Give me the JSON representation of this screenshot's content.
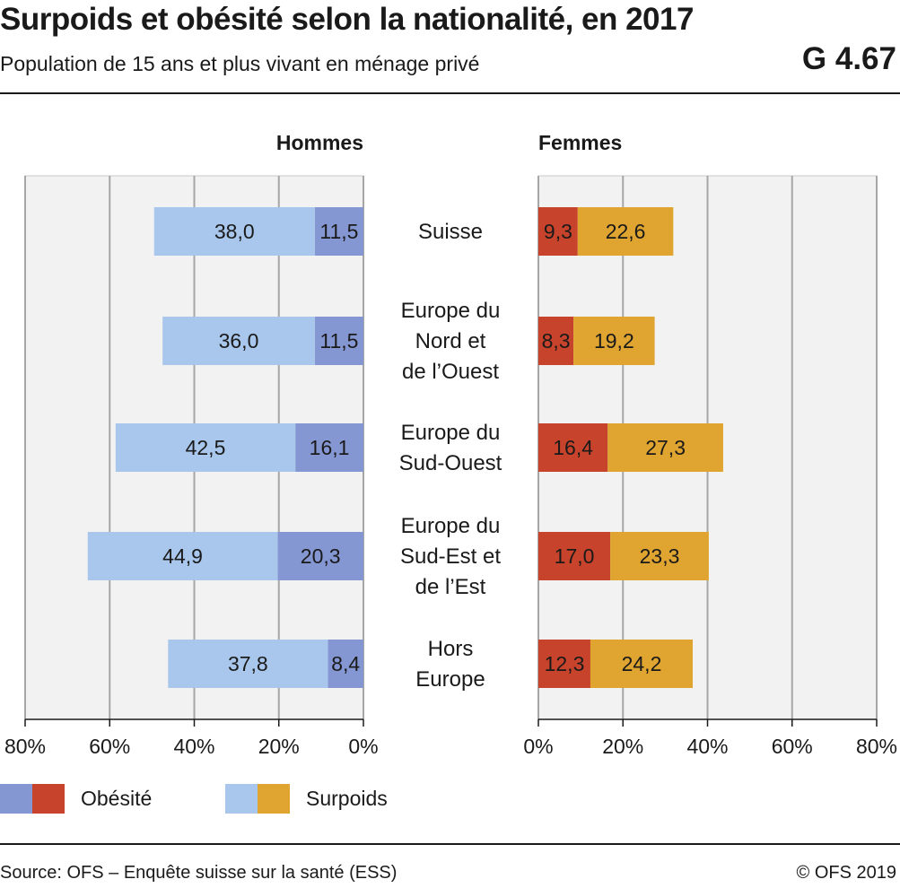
{
  "header": {
    "title": "Surpoids et obésité selon la nationalité, en 2017",
    "subtitle": "Population de 15 ans et plus vivant en ménage privé",
    "code": "G 4.67"
  },
  "footer": {
    "source": "Source: OFS – Enquête suisse sur la santé (ESS)",
    "copyright": "© OFS 2019"
  },
  "legend": [
    {
      "label": "Obésité",
      "colors": [
        "#8497d2",
        "#c8432b"
      ]
    },
    {
      "label": "Surpoids",
      "colors": [
        "#a9c7ec",
        "#dfa530"
      ]
    }
  ],
  "chart_data": {
    "type": "bar",
    "orientation": "horizontal",
    "stacked": true,
    "grid": true,
    "categories": [
      [
        "Suisse"
      ],
      [
        "Europe du",
        "Nord et",
        "de l’Ouest"
      ],
      [
        "Europe du",
        "Sud-Ouest"
      ],
      [
        "Europe du",
        "Sud-Est et",
        "de l’Est"
      ],
      [
        "Hors",
        "Europe"
      ]
    ],
    "panels": [
      {
        "title": "Hommes",
        "direction": "left",
        "xlim": [
          0,
          80
        ],
        "ticks": [
          "0%",
          "20%",
          "40%",
          "60%",
          "80%"
        ],
        "series": [
          {
            "name": "Obésité",
            "color": "#8497d2",
            "values": [
              11.5,
              11.5,
              16.1,
              20.3,
              8.4
            ],
            "labels": [
              "11,5",
              "11,5",
              "16,1",
              "20,3",
              "8,4"
            ]
          },
          {
            "name": "Surpoids",
            "color": "#a9c7ec",
            "values": [
              38.0,
              36.0,
              42.5,
              44.9,
              37.8
            ],
            "labels": [
              "38,0",
              "36,0",
              "42,5",
              "44,9",
              "37,8"
            ]
          }
        ]
      },
      {
        "title": "Femmes",
        "direction": "right",
        "xlim": [
          0,
          80
        ],
        "ticks": [
          "0%",
          "20%",
          "40%",
          "60%",
          "80%"
        ],
        "series": [
          {
            "name": "Obésité",
            "color": "#c8432b",
            "values": [
              9.3,
              8.3,
              16.4,
              17.0,
              12.3
            ],
            "labels": [
              "9,3",
              "8,3",
              "16,4",
              "17,0",
              "12,3"
            ]
          },
          {
            "name": "Surpoids",
            "color": "#dfa530",
            "values": [
              22.6,
              19.2,
              27.3,
              23.3,
              24.2
            ],
            "labels": [
              "22,6",
              "19,2",
              "27,3",
              "23,3",
              "24,2"
            ]
          }
        ]
      }
    ]
  }
}
